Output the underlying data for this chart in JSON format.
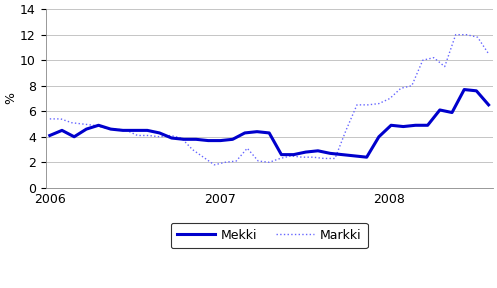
{
  "title": "",
  "ylabel": "%",
  "ylim": [
    0,
    14
  ],
  "yticks": [
    0,
    2,
    4,
    6,
    8,
    10,
    12,
    14
  ],
  "xtick_positions": [
    0,
    12,
    24
  ],
  "xtick_labels": [
    "2006",
    "2007",
    "2008"
  ],
  "mekki_color": "#0000CC",
  "markki_color": "#6666FF",
  "mekki": [
    4.1,
    4.5,
    4.0,
    4.6,
    4.9,
    4.6,
    4.5,
    4.5,
    4.5,
    4.3,
    3.9,
    3.8,
    3.8,
    3.7,
    3.7,
    3.8,
    4.3,
    4.4,
    4.3,
    2.6,
    2.6,
    2.8,
    2.9,
    2.7,
    2.6,
    2.5,
    2.4,
    4.0,
    4.9,
    4.8,
    4.9,
    4.9,
    6.1,
    5.9,
    7.7,
    7.6,
    6.5
  ],
  "markki": [
    5.4,
    5.4,
    5.1,
    5.0,
    4.9,
    4.7,
    4.6,
    4.5,
    4.1,
    4.1,
    4.0,
    4.1,
    3.9,
    3.0,
    2.4,
    1.8,
    2.0,
    2.1,
    3.1,
    2.1,
    2.0,
    2.3,
    2.5,
    2.4,
    2.4,
    2.3,
    2.3,
    4.5,
    6.5,
    6.5,
    6.6,
    7.0,
    7.8,
    8.0,
    10.0,
    10.2,
    9.5,
    12.0,
    12.0,
    11.8,
    10.5
  ],
  "legend_labels": [
    "Mekki",
    "Markki"
  ],
  "background_color": "#FFFFFF",
  "grid_color": "#BBBBBB"
}
